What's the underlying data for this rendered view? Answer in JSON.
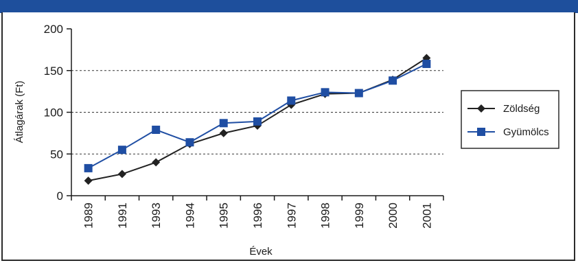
{
  "chart_data": {
    "type": "line",
    "title": "",
    "xlabel": "Évek",
    "ylabel": "Átlagárak (Ft)",
    "categories": [
      "1989",
      "1991",
      "1993",
      "1994",
      "1995",
      "1996",
      "1997",
      "1998",
      "1999",
      "2000",
      "2001"
    ],
    "ylim": [
      0,
      200
    ],
    "yticks": [
      "0",
      "50",
      "100",
      "150",
      "200"
    ],
    "grid": "dashed horizontal at 50, 100, 150",
    "legend_position": "right",
    "series": [
      {
        "name": "Zöldség",
        "marker": "diamond",
        "color": "#222222",
        "values": [
          18,
          26,
          40,
          62,
          75,
          84,
          109,
          122,
          123,
          139,
          165
        ]
      },
      {
        "name": "Gyümölcs",
        "marker": "square",
        "color": "#1f4ea3",
        "values": [
          33,
          55,
          79,
          64,
          87,
          89,
          114,
          124,
          123,
          138,
          158
        ]
      }
    ]
  }
}
